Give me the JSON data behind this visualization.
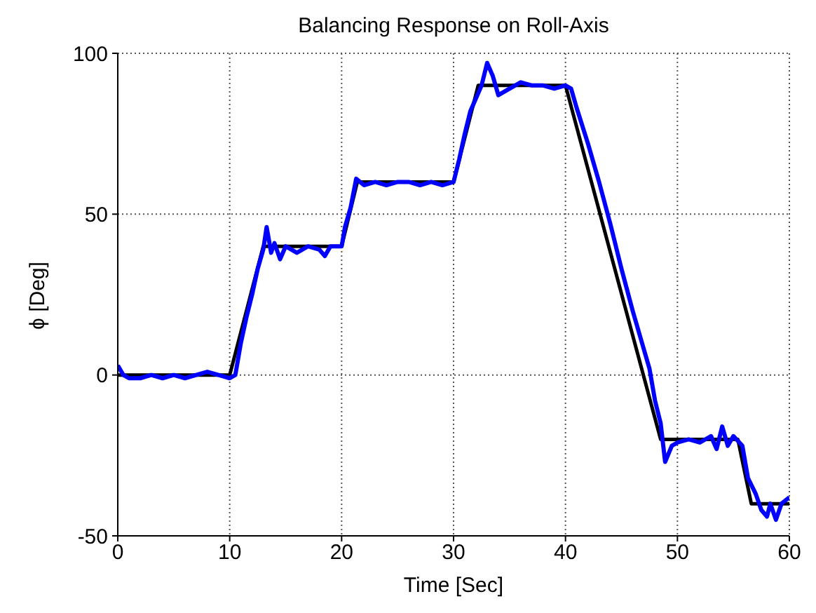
{
  "chart_data": {
    "type": "line",
    "title": "Balancing Response on Roll-Axis",
    "xlabel": "Time [Sec]",
    "ylabel": "ϕ [Deg]",
    "xlim": [
      0,
      60
    ],
    "xticks": [
      0,
      10,
      20,
      30,
      40,
      50,
      60
    ],
    "ylim": [
      -50,
      100
    ],
    "yticks": [
      -50,
      0,
      50,
      100
    ],
    "grid": true,
    "line_style": "solid",
    "marker": "none",
    "series": [
      {
        "color": "#000000",
        "x": [
          0,
          10,
          13,
          20,
          21.4,
          30,
          32.2,
          40,
          48.5,
          55.4,
          56.6,
          60
        ],
        "values": [
          0,
          0,
          40,
          40,
          60,
          60,
          90,
          90,
          -20,
          -20,
          -40,
          -40
        ]
      },
      {
        "color": "#0000ff",
        "x": [
          0,
          0.5,
          1,
          2,
          3,
          4,
          5,
          6,
          7,
          8,
          9,
          10,
          10.5,
          11,
          11.5,
          12,
          12.5,
          13,
          13.3,
          13.7,
          14,
          14.5,
          15,
          16,
          17,
          18,
          18.5,
          19,
          20,
          20.3,
          20.8,
          21.3,
          22,
          23,
          24,
          25,
          26,
          27,
          28,
          29,
          30,
          30.5,
          31,
          31.5,
          32,
          32.5,
          33,
          33.5,
          34,
          35,
          36,
          37,
          38,
          39,
          40,
          40.5,
          41,
          42,
          43,
          44,
          45,
          46,
          47,
          47.5,
          48,
          48.5,
          48.9,
          49.5,
          50,
          51,
          52,
          53,
          53.5,
          54,
          54.5,
          55,
          55.8,
          56.3,
          57,
          57.5,
          58,
          58.3,
          58.8,
          59.3,
          60
        ],
        "values": [
          3,
          0,
          -1,
          -1,
          0,
          -1,
          0,
          -1,
          0,
          1,
          0,
          -1,
          0,
          10,
          18,
          25,
          33,
          39,
          46,
          38,
          41,
          36,
          40,
          38,
          40,
          39,
          37,
          40,
          40,
          46,
          52,
          61,
          59,
          60,
          59,
          60,
          60,
          59,
          60,
          59,
          60,
          67,
          75,
          82,
          86,
          90,
          97,
          93,
          87,
          89,
          91,
          90,
          90,
          89,
          90,
          89,
          83,
          72,
          60,
          47,
          33,
          20,
          8,
          2,
          -8,
          -15,
          -27,
          -22,
          -21,
          -20,
          -21,
          -19,
          -23,
          -16,
          -22,
          -19,
          -22,
          -32,
          -37,
          -42,
          -44,
          -40,
          -45,
          -40,
          -38
        ]
      }
    ]
  }
}
